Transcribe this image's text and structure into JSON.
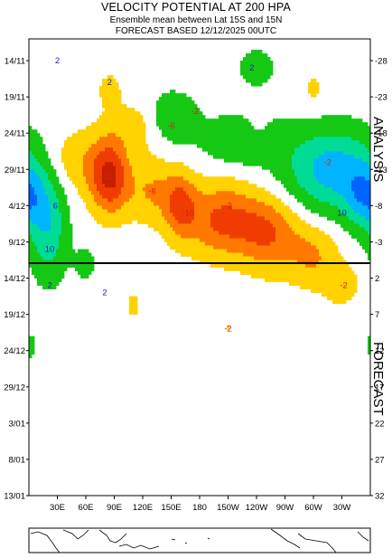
{
  "header": {
    "title": "VELOCITY POTENTIAL AT 200 HPA",
    "subtitle": "Ensemble mean between  Lat 15S and 15N",
    "forecast_line": "FORECAST  BASED 12/12/2025 00UTC"
  },
  "chart_data": {
    "type": "heatmap",
    "title": "VELOCITY POTENTIAL AT 200 HPA",
    "subtitle": "Ensemble mean between  Lat 15S and 15N",
    "x_ticks": [
      "30E",
      "60E",
      "90E",
      "120E",
      "150E",
      "180",
      "150W",
      "120W",
      "90W",
      "60W",
      "30W"
    ],
    "y_ticks_left": [
      "14/11",
      "19/11",
      "24/11",
      "29/11",
      "4/12",
      "9/12",
      "14/12",
      "19/12",
      "24/12",
      "29/12",
      "3/01",
      "8/01",
      "13/01"
    ],
    "y_ticks_right": [
      "-28",
      "-23",
      "-18",
      "-13",
      "-8",
      "-3",
      "2",
      "7",
      "12",
      "17",
      "22",
      "27",
      "32"
    ],
    "section_labels": {
      "analysis": "ANALYSIS",
      "forecast": "FORECAST"
    },
    "analysis_forecast_boundary": "12/12",
    "contour_labels": [
      {
        "text": "2",
        "lon": 30,
        "day": -28
      },
      {
        "text": "2",
        "lon": 85,
        "day": -25
      },
      {
        "text": "-2",
        "lon": 175,
        "day": -21
      },
      {
        "text": "-6",
        "lon": 150,
        "day": -19
      },
      {
        "text": "2",
        "lon": 235,
        "day": -27
      },
      {
        "text": "-2",
        "lon": 315,
        "day": -14
      },
      {
        "text": "-10",
        "lon": 82,
        "day": -12
      },
      {
        "text": "-6",
        "lon": 130,
        "day": -10
      },
      {
        "text": "-10",
        "lon": 168,
        "day": -7
      },
      {
        "text": "-2",
        "lon": 210,
        "day": -8
      },
      {
        "text": "6",
        "lon": 28,
        "day": -8
      },
      {
        "text": "10",
        "lon": 22,
        "day": -2
      },
      {
        "text": "10",
        "lon": 330,
        "day": -7
      },
      {
        "text": "-2",
        "lon": 332,
        "day": 3
      },
      {
        "text": "2",
        "lon": 80,
        "day": 4
      },
      {
        "text": "-2",
        "lon": 210,
        "day": 9
      },
      {
        "text": "2",
        "lon": 22,
        "day": 3
      }
    ],
    "color_scale": [
      {
        "level": -14,
        "color": "#c81e00"
      },
      {
        "level": -10,
        "color": "#f03c00"
      },
      {
        "level": -6,
        "color": "#ff7800"
      },
      {
        "level": -2,
        "color": "#ffd200"
      },
      {
        "level": 2,
        "color": "#14c814"
      },
      {
        "level": 6,
        "color": "#00dc96"
      },
      {
        "level": 10,
        "color": "#00b4ff"
      },
      {
        "level": 14,
        "color": "#0064ff"
      }
    ],
    "contour_colors": {
      "negative": "#d21e1e",
      "positive": "#1e1eb4"
    }
  }
}
